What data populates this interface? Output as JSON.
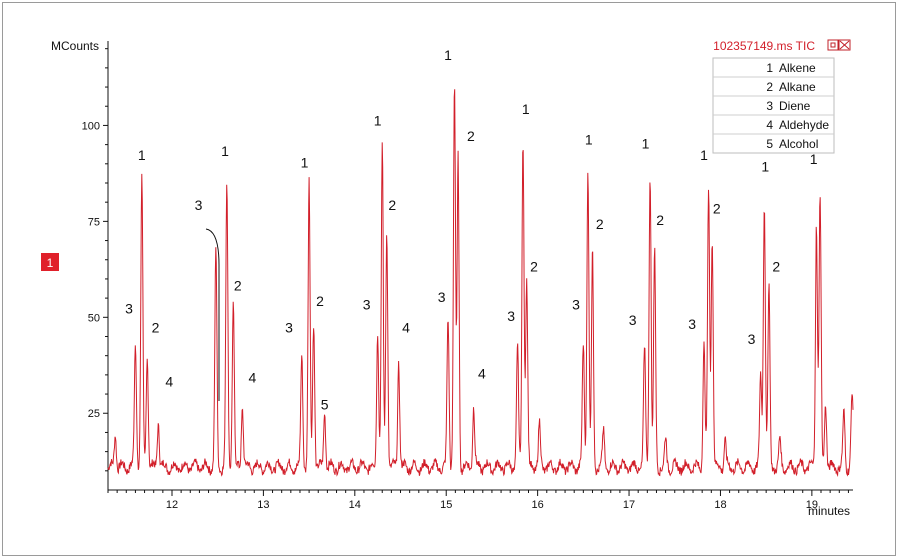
{
  "chart_data": {
    "type": "line",
    "title": "102357149.ms TIC",
    "ylabel": "MCounts",
    "xlabel": "minutes",
    "xlim": [
      11.3,
      19.45
    ],
    "ylim": [
      5,
      122
    ],
    "x_ticks": [
      12,
      13,
      14,
      15,
      16,
      17,
      18,
      19
    ],
    "y_ticks": [
      25,
      50,
      75,
      100
    ],
    "series_color": "#d21f2a",
    "marker_label": "1",
    "marker_color": "#e0202a",
    "legend": [
      {
        "num": "1",
        "label": "Alkene"
      },
      {
        "num": "2",
        "label": "Alkane"
      },
      {
        "num": "3",
        "label": "Diene"
      },
      {
        "num": "4",
        "label": "Aldehyde"
      },
      {
        "num": "5",
        "label": "Alcohol"
      }
    ],
    "baseline": 11,
    "peaks": [
      {
        "x": 11.38,
        "y": 20
      },
      {
        "x": 11.6,
        "y": 44
      },
      {
        "x": 11.67,
        "y": 87
      },
      {
        "x": 11.73,
        "y": 40
      },
      {
        "x": 11.85,
        "y": 23
      },
      {
        "x": 12.48,
        "y": 68
      },
      {
        "x": 12.6,
        "y": 85
      },
      {
        "x": 12.67,
        "y": 54
      },
      {
        "x": 12.77,
        "y": 27
      },
      {
        "x": 13.42,
        "y": 40
      },
      {
        "x": 13.5,
        "y": 86
      },
      {
        "x": 13.55,
        "y": 49
      },
      {
        "x": 13.67,
        "y": 26
      },
      {
        "x": 14.25,
        "y": 47
      },
      {
        "x": 14.3,
        "y": 94
      },
      {
        "x": 14.35,
        "y": 73
      },
      {
        "x": 14.48,
        "y": 39
      },
      {
        "x": 15.02,
        "y": 50
      },
      {
        "x": 15.09,
        "y": 111
      },
      {
        "x": 15.13,
        "y": 92
      },
      {
        "x": 15.3,
        "y": 27
      },
      {
        "x": 15.78,
        "y": 43
      },
      {
        "x": 15.84,
        "y": 97
      },
      {
        "x": 15.88,
        "y": 60
      },
      {
        "x": 16.02,
        "y": 22
      },
      {
        "x": 16.5,
        "y": 43
      },
      {
        "x": 16.55,
        "y": 89
      },
      {
        "x": 16.6,
        "y": 67
      },
      {
        "x": 16.72,
        "y": 20
      },
      {
        "x": 17.17,
        "y": 42
      },
      {
        "x": 17.23,
        "y": 88
      },
      {
        "x": 17.28,
        "y": 67
      },
      {
        "x": 17.4,
        "y": 18
      },
      {
        "x": 17.82,
        "y": 43
      },
      {
        "x": 17.87,
        "y": 84
      },
      {
        "x": 17.91,
        "y": 72
      },
      {
        "x": 18.05,
        "y": 18
      },
      {
        "x": 18.44,
        "y": 35
      },
      {
        "x": 18.48,
        "y": 81
      },
      {
        "x": 18.53,
        "y": 58
      },
      {
        "x": 18.65,
        "y": 18
      },
      {
        "x": 19.05,
        "y": 75
      },
      {
        "x": 19.09,
        "y": 82
      },
      {
        "x": 19.15,
        "y": 28
      },
      {
        "x": 19.35,
        "y": 25
      },
      {
        "x": 19.44,
        "y": 30
      }
    ],
    "annotations": [
      {
        "text": "1",
        "x": 11.67,
        "y": 91
      },
      {
        "text": "3",
        "x": 11.53,
        "y": 51
      },
      {
        "text": "2",
        "x": 11.82,
        "y": 46
      },
      {
        "text": "4",
        "x": 11.97,
        "y": 32
      },
      {
        "text": "3",
        "x": 12.29,
        "y": 78
      },
      {
        "text": "1",
        "x": 12.58,
        "y": 92
      },
      {
        "text": "2",
        "x": 12.72,
        "y": 57
      },
      {
        "text": "4",
        "x": 12.88,
        "y": 33
      },
      {
        "text": "3",
        "x": 13.28,
        "y": 46
      },
      {
        "text": "1",
        "x": 13.45,
        "y": 89
      },
      {
        "text": "2",
        "x": 13.62,
        "y": 53
      },
      {
        "text": "5",
        "x": 13.67,
        "y": 26
      },
      {
        "text": "3",
        "x": 14.13,
        "y": 52
      },
      {
        "text": "1",
        "x": 14.25,
        "y": 100
      },
      {
        "text": "2",
        "x": 14.41,
        "y": 78
      },
      {
        "text": "4",
        "x": 14.56,
        "y": 46
      },
      {
        "text": "3",
        "x": 14.95,
        "y": 54
      },
      {
        "text": "1",
        "x": 15.02,
        "y": 117
      },
      {
        "text": "2",
        "x": 15.27,
        "y": 96
      },
      {
        "text": "4",
        "x": 15.39,
        "y": 34
      },
      {
        "text": "3",
        "x": 15.71,
        "y": 49
      },
      {
        "text": "1",
        "x": 15.87,
        "y": 103
      },
      {
        "text": "2",
        "x": 15.96,
        "y": 62
      },
      {
        "text": "3",
        "x": 16.42,
        "y": 52
      },
      {
        "text": "1",
        "x": 16.56,
        "y": 95
      },
      {
        "text": "2",
        "x": 16.68,
        "y": 73
      },
      {
        "text": "3",
        "x": 17.04,
        "y": 48
      },
      {
        "text": "1",
        "x": 17.18,
        "y": 94
      },
      {
        "text": "2",
        "x": 17.34,
        "y": 74
      },
      {
        "text": "3",
        "x": 17.69,
        "y": 47
      },
      {
        "text": "1",
        "x": 17.82,
        "y": 91
      },
      {
        "text": "2",
        "x": 17.96,
        "y": 77
      },
      {
        "text": "3",
        "x": 18.34,
        "y": 43
      },
      {
        "text": "1",
        "x": 18.49,
        "y": 88
      },
      {
        "text": "2",
        "x": 18.61,
        "y": 62
      },
      {
        "text": "1",
        "x": 19.02,
        "y": 90
      }
    ],
    "grid": false,
    "legend_position": "top-right"
  }
}
